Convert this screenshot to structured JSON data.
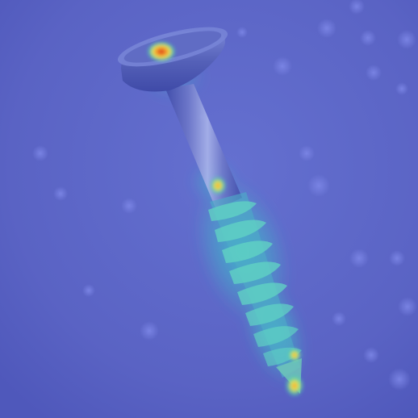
{
  "image": {
    "subject": "screw-heatmap-overlay",
    "colors": {
      "background": "#5a63c4",
      "background_dark": "#4f58bb",
      "metal_shadow": "#3f4aa8",
      "metal_mid": "#6e78c9",
      "metal_light": "#a9b4ea",
      "heat_cyan": "#39c6c9",
      "heat_green": "#5ad6a0",
      "heat_yellow": "#e8e252",
      "heat_orange": "#f39a2c",
      "heat_red": "#d42a12"
    },
    "icons": [
      "screw-icon",
      "heatmap-overlay-icon"
    ]
  }
}
